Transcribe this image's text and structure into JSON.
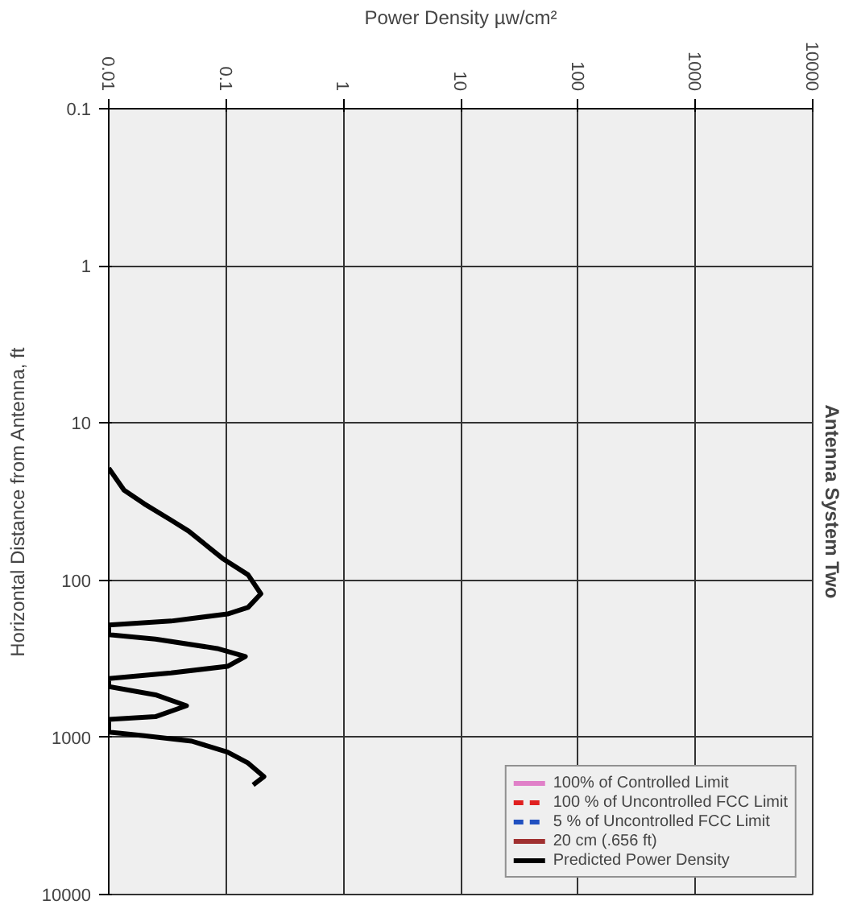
{
  "chart_data": {
    "type": "line",
    "title": "Antenna System Two",
    "xlabel": "Power Density µw/cm²",
    "ylabel": "Horizontal Distance from Antenna, ft",
    "log": "xy",
    "grid": true,
    "legend": "bottom right",
    "xlim": [
      0.01,
      10000
    ],
    "xticks": [
      0.01,
      0.1,
      1,
      10,
      100,
      1000,
      10000
    ],
    "ylim": [
      10000,
      0.1
    ],
    "yticks": [
      0.1,
      1,
      10,
      100,
      1000,
      10000
    ],
    "series": [
      {
        "name": "100% of Controlled Limit",
        "color": "#e080c8",
        "line_style": "solid"
      },
      {
        "name": "100 % of Uncontrolled FCC Limit",
        "color": "#e02020",
        "line_style": "dashed"
      },
      {
        "name": "5 % of Uncontrolled FCC Limit",
        "color": "#2050c0",
        "line_style": "dashed"
      },
      {
        "name": "20 cm (.656 ft)",
        "color": "#a03030",
        "line_style": "solid"
      },
      {
        "name": "Predicted Power Density",
        "color": "#000000",
        "line_style": "solid",
        "x": [
          0.01,
          0.0135,
          0.02,
          0.034,
          0.048,
          0.093,
          0.154,
          0.198,
          0.154,
          0.103,
          0.034,
          0.01,
          0.01,
          0.025,
          0.084,
          0.146,
          0.103,
          0.034,
          0.01,
          0.01,
          0.025,
          0.046,
          0.025,
          0.01,
          0.01,
          0.02,
          0.051,
          0.103,
          0.154,
          0.21,
          0.17
        ],
        "values": [
          19.4,
          26.7,
          32.6,
          41.5,
          48.7,
          72.6,
          92.4,
          122,
          149,
          164,
          182,
          193,
          222,
          237,
          272,
          306,
          353,
          389,
          422,
          475,
          536,
          629,
          738,
          768,
          925,
          977,
          1057,
          1242,
          1456,
          1778,
          2005
        ]
      }
    ]
  }
}
